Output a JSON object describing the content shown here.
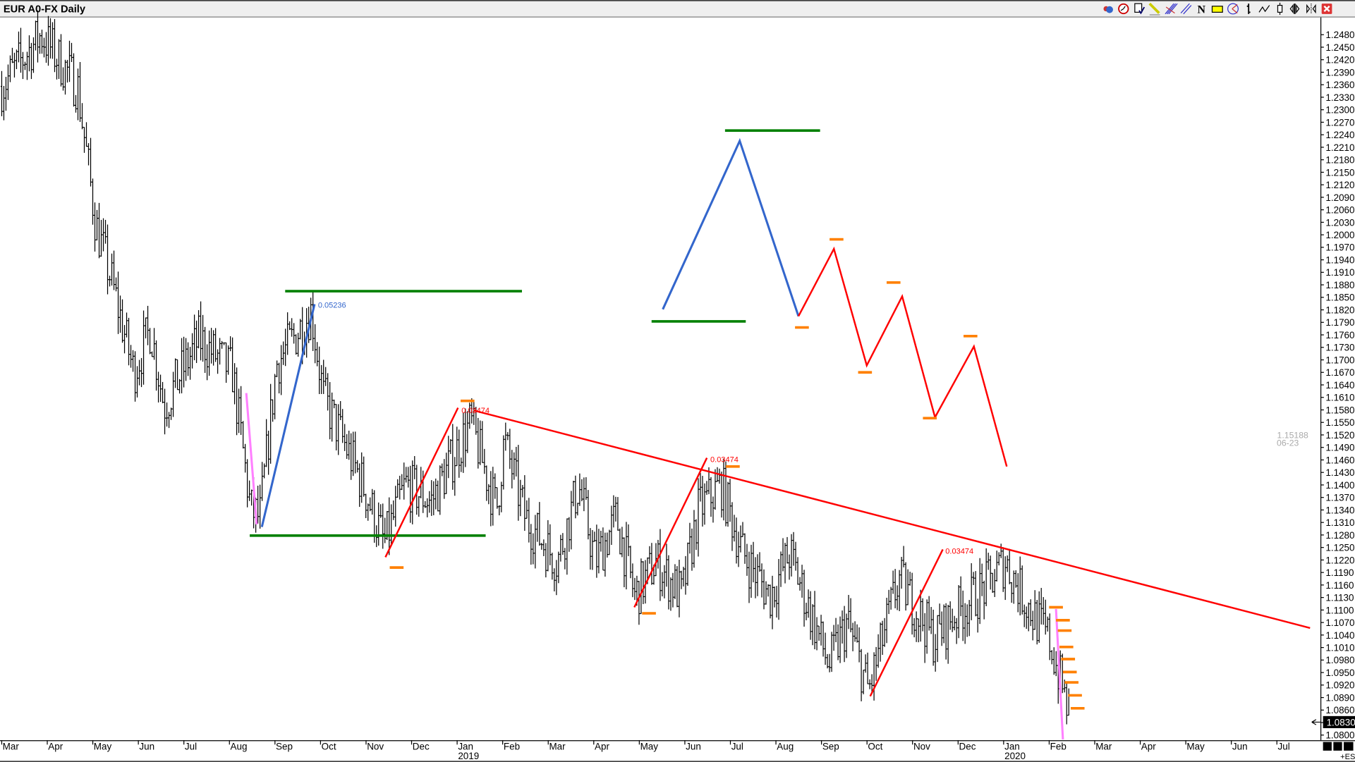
{
  "window": {
    "title": "EUR A0-FX Daily"
  },
  "toolbar": {
    "icons": [
      "objects-icon",
      "clock-icon",
      "checklist-icon",
      "pencil-icon",
      "fibonacci-fan-icon",
      "parallel-lines-icon",
      "text-n-icon",
      "rectangle-icon",
      "circle-angle-icon",
      "bar-chart-icon",
      "line-chart-icon",
      "candlestick-icon",
      "scroll-left-icon",
      "scroll-right-icon",
      "close-icon"
    ],
    "n_label": "N"
  },
  "colors": {
    "bars": "#000000",
    "red": "#ff0000",
    "green": "#008000",
    "blue": "#3366cc",
    "pink": "#ff80ff",
    "orange": "#ff8000"
  },
  "chart_data": {
    "type": "ohlc",
    "title": "EUR A0-FX Daily",
    "ylim": [
      1.08,
      1.248
    ],
    "yticks": [
      "1.2480",
      "1.2450",
      "1.2420",
      "1.2390",
      "1.2360",
      "1.2330",
      "1.2300",
      "1.2270",
      "1.2240",
      "1.2210",
      "1.2180",
      "1.2150",
      "1.2120",
      "1.2090",
      "1.2060",
      "1.2030",
      "1.2000",
      "1.1970",
      "1.1940",
      "1.1910",
      "1.1880",
      "1.1850",
      "1.1820",
      "1.1790",
      "1.1760",
      "1.1730",
      "1.1700",
      "1.1670",
      "1.1640",
      "1.1610",
      "1.1580",
      "1.1550",
      "1.1520",
      "1.1490",
      "1.1460",
      "1.1430",
      "1.1400",
      "1.1370",
      "1.1340",
      "1.1310",
      "1.1280",
      "1.1250",
      "1.1220",
      "1.1190",
      "1.1160",
      "1.1130",
      "1.1100",
      "1.1070",
      "1.1040",
      "1.1010",
      "1.0980",
      "1.0950",
      "1.0920",
      "1.0890",
      "1.0860",
      "1.0830",
      "1.0800"
    ],
    "xticks": [
      "Mar",
      "Apr",
      "May",
      "Jun",
      "Jul",
      "Aug",
      "Sep",
      "Oct",
      "Nov",
      "Dec",
      "Jan",
      "Feb",
      "Mar",
      "Apr",
      "May",
      "Jun",
      "Jul",
      "Aug",
      "Sep",
      "Oct",
      "Nov",
      "Dec",
      "Jan",
      "Feb",
      "Mar",
      "Apr",
      "May",
      "Jun",
      "Jul"
    ],
    "year_labels": [
      {
        "month_index": 10,
        "label": "2019"
      },
      {
        "month_index": 22,
        "label": "2020"
      }
    ],
    "last_price": "1.0830",
    "cursor_readout": {
      "price": "1.15188",
      "date": "06-23"
    },
    "price_path": [
      [
        "2018-03-01",
        1.2356
      ],
      [
        "2018-03-27",
        1.248
      ],
      [
        "2018-04-21",
        1.2356
      ],
      [
        "2018-05-03",
        1.2024
      ],
      [
        "2018-05-14",
        1.188
      ],
      [
        "2018-05-28",
        1.167
      ],
      [
        "2018-06-09",
        1.1776
      ],
      [
        "2018-06-18",
        1.159
      ],
      [
        "2018-07-11",
        1.175
      ],
      [
        "2018-08-03",
        1.167
      ],
      [
        "2018-08-15",
        1.134
      ],
      [
        "2018-08-21",
        1.132
      ],
      [
        "2018-09-02",
        1.169
      ],
      [
        "2018-09-25",
        1.1817
      ],
      [
        "2018-10-03",
        1.161
      ],
      [
        "2018-10-29",
        1.14
      ],
      [
        "2018-11-13",
        1.1258
      ],
      [
        "2018-11-27",
        1.14
      ],
      [
        "2018-12-14",
        1.136
      ],
      [
        "2019-01-10",
        1.155
      ],
      [
        "2019-01-27",
        1.134
      ],
      [
        "2019-02-02",
        1.1506
      ],
      [
        "2019-02-16",
        1.132
      ],
      [
        "2019-03-07",
        1.1216
      ],
      [
        "2019-03-21",
        1.14
      ],
      [
        "2019-04-02",
        1.1216
      ],
      [
        "2019-04-16",
        1.132
      ],
      [
        "2019-04-28",
        1.1133
      ],
      [
        "2019-05-12",
        1.1216
      ],
      [
        "2019-05-29",
        1.1133
      ],
      [
        "2019-06-10",
        1.134
      ],
      [
        "2019-06-25",
        1.14
      ],
      [
        "2019-07-09",
        1.1236
      ],
      [
        "2019-07-27",
        1.1133
      ],
      [
        "2019-08-10",
        1.1236
      ],
      [
        "2019-09-06",
        1.0967
      ],
      [
        "2019-09-18",
        1.107
      ],
      [
        "2019-10-02",
        1.0905
      ],
      [
        "2019-10-22",
        1.1175
      ],
      [
        "2019-11-15",
        1.103
      ],
      [
        "2019-11-29",
        1.109
      ],
      [
        "2019-12-19",
        1.1155
      ],
      [
        "2020-01-02",
        1.1216
      ],
      [
        "2020-01-20",
        1.109
      ],
      [
        "2020-02-01",
        1.103
      ],
      [
        "2020-02-15",
        1.0843
      ]
    ],
    "annotations": {
      "labels": [
        {
          "text": "0.05236",
          "color": "blue"
        },
        {
          "text": "0.03474",
          "color": "red"
        },
        {
          "text": "0.03474",
          "color": "red"
        },
        {
          "text": "0.03474",
          "color": "red"
        }
      ]
    },
    "footer": {
      "tag": "+ES"
    }
  }
}
